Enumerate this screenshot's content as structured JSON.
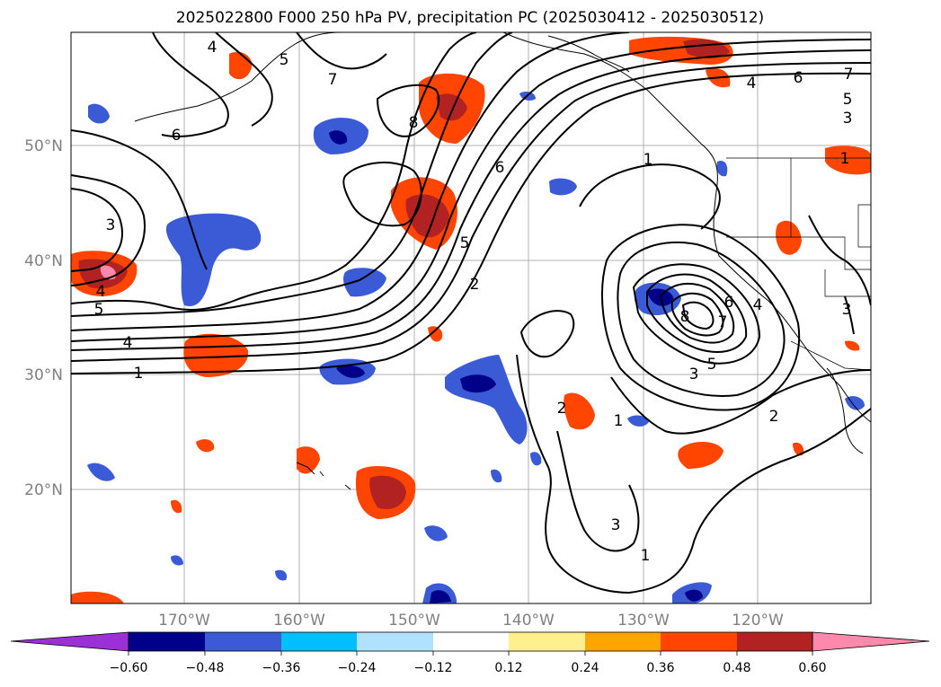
{
  "title": "2025022800 F000 250 hPa PV, precipitation PC (2025030412 - 2025030512)",
  "map": {
    "lat_labels": [
      "50°N",
      "40°N",
      "30°N",
      "20°N"
    ],
    "lon_labels": [
      "170°W",
      "160°W",
      "150°W",
      "140°W",
      "130°W",
      "120°W"
    ],
    "gridlines": true,
    "gridline_color": "#b0b0b0"
  },
  "pv_contour_labels": [
    "4",
    "5",
    "7",
    "8",
    "6",
    "3",
    "4",
    "5",
    "4",
    "1",
    "6",
    "5",
    "2",
    "1",
    "8",
    "7",
    "6",
    "4",
    "3",
    "5",
    "3",
    "2",
    "1",
    "3",
    "1",
    "2",
    "6",
    "5",
    "3",
    "7",
    "1",
    "4"
  ],
  "colorbar": {
    "ticks": [
      "−0.60",
      "−0.48",
      "−0.36",
      "−0.24",
      "−0.12",
      "0.12",
      "0.24",
      "0.36",
      "0.48",
      "0.60"
    ],
    "colors": [
      "#9b30d6",
      "#00008b",
      "#3b5bd6",
      "#00bfff",
      "#b0e2ff",
      "#ffffff",
      "#fff08f",
      "#ffa500",
      "#ff4500",
      "#b22222",
      "#ff89ad"
    ],
    "extend": "both"
  }
}
